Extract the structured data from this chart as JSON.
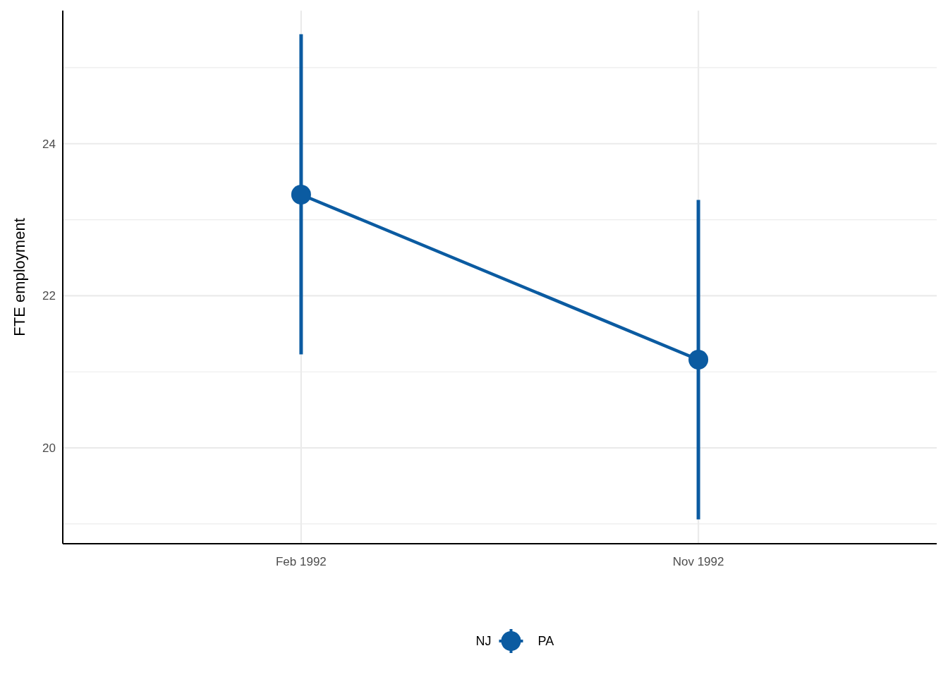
{
  "chart_data": {
    "type": "line",
    "ylabel": "FTE employment",
    "legend_title": "NJ",
    "categories": [
      "Feb 1992",
      "Nov 1992"
    ],
    "series": [
      {
        "name": "PA",
        "color": "#0b5ba1",
        "values": [
          23.33,
          21.16
        ],
        "errors": [
          [
            21.23,
            25.44
          ],
          [
            19.06,
            23.26
          ]
        ]
      }
    ],
    "ylim": [
      18.74,
      25.75
    ],
    "yticks": [
      {
        "value": 19,
        "label": null
      },
      20,
      {
        "value": 21,
        "label": null
      },
      22,
      {
        "value": 23,
        "label": null
      },
      24,
      {
        "value": 25,
        "label": null
      }
    ],
    "grid": true,
    "legend": "bottom",
    "marker": "circle",
    "line_style": "solid"
  }
}
